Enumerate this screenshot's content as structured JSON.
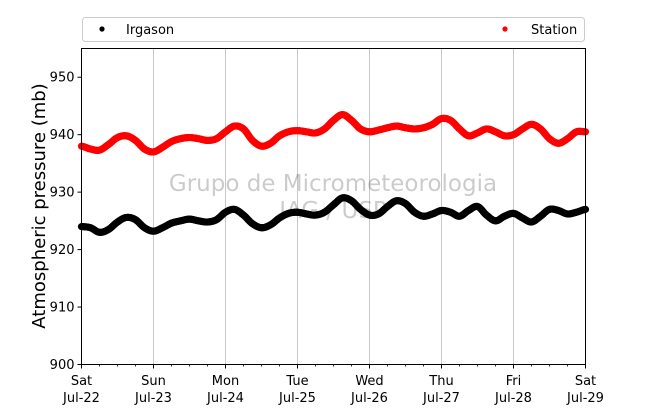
{
  "chart_data": {
    "type": "scatter",
    "ylabel": "Atmospheric pressure (mb)",
    "xlabel": "",
    "ylim": [
      900,
      955
    ],
    "yticks": [
      900,
      910,
      920,
      930,
      940,
      950
    ],
    "xlim": [
      "2017-07-22",
      "2017-07-29"
    ],
    "xticks": [
      {
        "date": "2017-07-22",
        "day": "Sat",
        "label": "Jul-22"
      },
      {
        "date": "2017-07-23",
        "day": "Sun",
        "label": "Jul-23"
      },
      {
        "date": "2017-07-24",
        "day": "Mon",
        "label": "Jul-24"
      },
      {
        "date": "2017-07-25",
        "day": "Tue",
        "label": "Jul-25"
      },
      {
        "date": "2017-07-26",
        "day": "Wed",
        "label": "Jul-26"
      },
      {
        "date": "2017-07-27",
        "day": "Thu",
        "label": "Jul-27"
      },
      {
        "date": "2017-07-28",
        "day": "Fri",
        "label": "Jul-28"
      },
      {
        "date": "2017-07-29",
        "day": "Sat",
        "label": "Jul-29"
      }
    ],
    "grid": "vertical",
    "legend_position": "top",
    "series": [
      {
        "name": "Irgason",
        "color": "#000000",
        "points": [
          [
            "2017-07-22 00:00",
            924.0
          ],
          [
            "2017-07-22 03:00",
            923.8
          ],
          [
            "2017-07-22 06:00",
            923.0
          ],
          [
            "2017-07-22 09:00",
            923.5
          ],
          [
            "2017-07-22 12:00",
            924.8
          ],
          [
            "2017-07-22 15:00",
            925.6
          ],
          [
            "2017-07-22 18:00",
            925.2
          ],
          [
            "2017-07-22 21:00",
            923.8
          ],
          [
            "2017-07-23 00:00",
            923.2
          ],
          [
            "2017-07-23 03:00",
            923.8
          ],
          [
            "2017-07-23 06:00",
            924.6
          ],
          [
            "2017-07-23 09:00",
            925.0
          ],
          [
            "2017-07-23 12:00",
            925.3
          ],
          [
            "2017-07-23 15:00",
            925.0
          ],
          [
            "2017-07-23 18:00",
            924.8
          ],
          [
            "2017-07-23 21:00",
            925.2
          ],
          [
            "2017-07-24 00:00",
            926.5
          ],
          [
            "2017-07-24 03:00",
            927.0
          ],
          [
            "2017-07-24 06:00",
            926.0
          ],
          [
            "2017-07-24 09:00",
            924.5
          ],
          [
            "2017-07-24 12:00",
            923.8
          ],
          [
            "2017-07-24 15:00",
            924.3
          ],
          [
            "2017-07-24 18:00",
            925.5
          ],
          [
            "2017-07-24 21:00",
            926.3
          ],
          [
            "2017-07-25 00:00",
            926.5
          ],
          [
            "2017-07-25 03:00",
            926.2
          ],
          [
            "2017-07-25 06:00",
            926.0
          ],
          [
            "2017-07-25 09:00",
            926.5
          ],
          [
            "2017-07-25 12:00",
            927.8
          ],
          [
            "2017-07-25 15:00",
            929.0
          ],
          [
            "2017-07-25 18:00",
            928.5
          ],
          [
            "2017-07-25 21:00",
            927.0
          ],
          [
            "2017-07-26 00:00",
            926.0
          ],
          [
            "2017-07-26 03:00",
            926.2
          ],
          [
            "2017-07-26 06:00",
            927.5
          ],
          [
            "2017-07-26 09:00",
            928.5
          ],
          [
            "2017-07-26 12:00",
            928.0
          ],
          [
            "2017-07-26 15:00",
            926.5
          ],
          [
            "2017-07-26 18:00",
            925.8
          ],
          [
            "2017-07-26 21:00",
            926.2
          ],
          [
            "2017-07-27 00:00",
            926.8
          ],
          [
            "2017-07-27 03:00",
            926.5
          ],
          [
            "2017-07-27 06:00",
            925.8
          ],
          [
            "2017-07-27 09:00",
            926.8
          ],
          [
            "2017-07-27 12:00",
            927.5
          ],
          [
            "2017-07-27 15:00",
            926.0
          ],
          [
            "2017-07-27 18:00",
            925.0
          ],
          [
            "2017-07-27 21:00",
            925.8
          ],
          [
            "2017-07-28 00:00",
            926.3
          ],
          [
            "2017-07-28 03:00",
            925.5
          ],
          [
            "2017-07-28 06:00",
            924.8
          ],
          [
            "2017-07-28 09:00",
            925.8
          ],
          [
            "2017-07-28 12:00",
            927.0
          ],
          [
            "2017-07-28 15:00",
            926.8
          ],
          [
            "2017-07-28 18:00",
            926.2
          ],
          [
            "2017-07-28 21:00",
            926.5
          ],
          [
            "2017-07-29 00:00",
            927.0
          ]
        ]
      },
      {
        "name": "Station",
        "color": "#ff0000",
        "points": [
          [
            "2017-07-22 00:00",
            938.0
          ],
          [
            "2017-07-22 03:00",
            937.5
          ],
          [
            "2017-07-22 06:00",
            937.3
          ],
          [
            "2017-07-22 09:00",
            938.3
          ],
          [
            "2017-07-22 12:00",
            939.5
          ],
          [
            "2017-07-22 15:00",
            939.8
          ],
          [
            "2017-07-22 18:00",
            939.0
          ],
          [
            "2017-07-22 21:00",
            937.5
          ],
          [
            "2017-07-23 00:00",
            937.0
          ],
          [
            "2017-07-23 03:00",
            937.8
          ],
          [
            "2017-07-23 06:00",
            938.8
          ],
          [
            "2017-07-23 09:00",
            939.3
          ],
          [
            "2017-07-23 12:00",
            939.5
          ],
          [
            "2017-07-23 15:00",
            939.3
          ],
          [
            "2017-07-23 18:00",
            939.0
          ],
          [
            "2017-07-23 21:00",
            939.3
          ],
          [
            "2017-07-24 00:00",
            940.5
          ],
          [
            "2017-07-24 03:00",
            941.5
          ],
          [
            "2017-07-24 06:00",
            941.0
          ],
          [
            "2017-07-24 09:00",
            939.0
          ],
          [
            "2017-07-24 12:00",
            938.0
          ],
          [
            "2017-07-24 15:00",
            938.5
          ],
          [
            "2017-07-24 18:00",
            939.8
          ],
          [
            "2017-07-24 21:00",
            940.5
          ],
          [
            "2017-07-25 00:00",
            940.7
          ],
          [
            "2017-07-25 03:00",
            940.5
          ],
          [
            "2017-07-25 06:00",
            940.3
          ],
          [
            "2017-07-25 09:00",
            941.0
          ],
          [
            "2017-07-25 12:00",
            942.5
          ],
          [
            "2017-07-25 15:00",
            943.5
          ],
          [
            "2017-07-25 18:00",
            942.5
          ],
          [
            "2017-07-25 21:00",
            941.0
          ],
          [
            "2017-07-26 00:00",
            940.5
          ],
          [
            "2017-07-26 03:00",
            940.8
          ],
          [
            "2017-07-26 06:00",
            941.2
          ],
          [
            "2017-07-26 09:00",
            941.5
          ],
          [
            "2017-07-26 12:00",
            941.2
          ],
          [
            "2017-07-26 15:00",
            941.0
          ],
          [
            "2017-07-26 18:00",
            941.2
          ],
          [
            "2017-07-26 21:00",
            941.8
          ],
          [
            "2017-07-27 00:00",
            942.8
          ],
          [
            "2017-07-27 03:00",
            942.5
          ],
          [
            "2017-07-27 06:00",
            941.0
          ],
          [
            "2017-07-27 09:00",
            939.8
          ],
          [
            "2017-07-27 12:00",
            940.3
          ],
          [
            "2017-07-27 15:00",
            941.0
          ],
          [
            "2017-07-27 18:00",
            940.5
          ],
          [
            "2017-07-27 21:00",
            939.8
          ],
          [
            "2017-07-28 00:00",
            940.0
          ],
          [
            "2017-07-28 03:00",
            941.0
          ],
          [
            "2017-07-28 06:00",
            941.8
          ],
          [
            "2017-07-28 09:00",
            941.0
          ],
          [
            "2017-07-28 12:00",
            939.3
          ],
          [
            "2017-07-28 15:00",
            938.5
          ],
          [
            "2017-07-28 18:00",
            939.3
          ],
          [
            "2017-07-28 21:00",
            940.5
          ],
          [
            "2017-07-29 00:00",
            940.5
          ]
        ]
      }
    ],
    "watermark": [
      "Grupo de Micrometeorologia",
      "IAG / USP"
    ]
  }
}
